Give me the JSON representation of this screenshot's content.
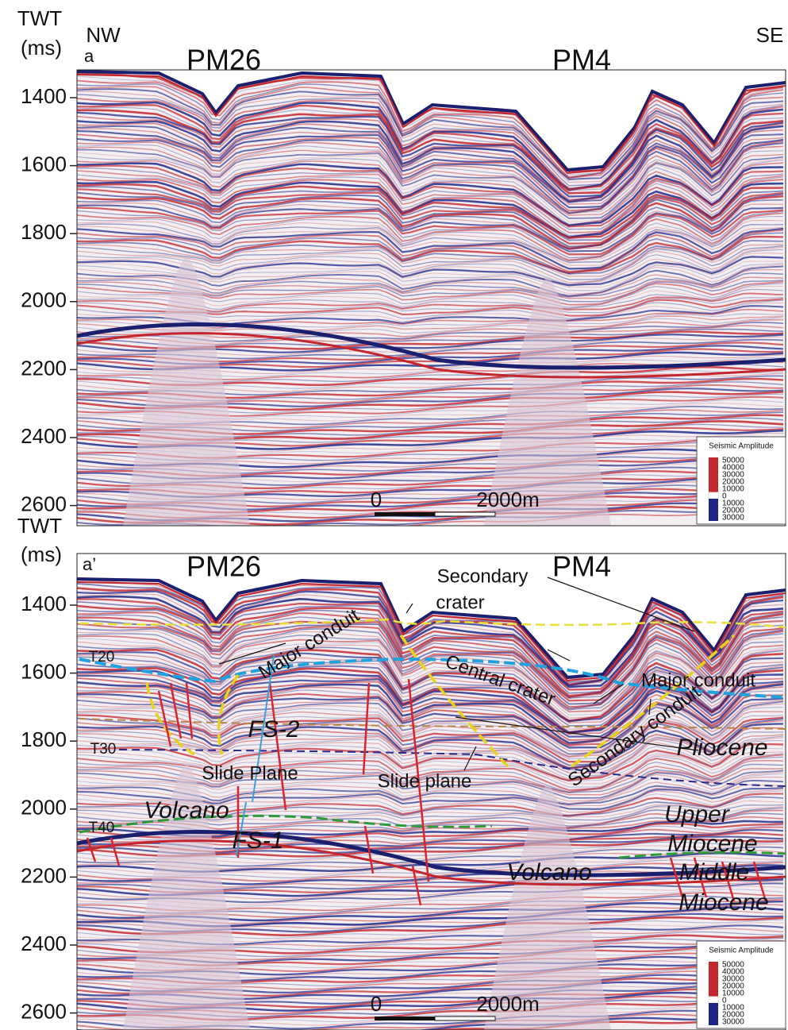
{
  "panels": [
    {
      "label": "a",
      "axis_title": [
        "TWT",
        "(ms)"
      ],
      "ticks": [
        1400,
        1600,
        1800,
        2000,
        2200,
        2400,
        2600
      ],
      "left": "NW",
      "right": "SE",
      "wells": [
        "PM26",
        "PM4"
      ],
      "legend": {
        "title": "Seismic Amplitude",
        "labels": [
          "50000",
          "40000",
          "30000",
          "20000",
          "10000",
          "0",
          "10000",
          "20000",
          "30000"
        ]
      },
      "scale_bar": [
        "0",
        "2000m"
      ]
    },
    {
      "label": "a’",
      "axis_title": [
        "TWT",
        "(ms)"
      ],
      "ticks": [
        1400,
        1600,
        1800,
        2000,
        2200,
        2400,
        2600
      ],
      "wells": [
        "PM26",
        "PM4"
      ],
      "legend": {
        "title": "Seismic Amplitude",
        "labels": [
          "50000",
          "40000",
          "30000",
          "20000",
          "10000",
          "0",
          "10000",
          "20000",
          "30000"
        ]
      },
      "scale_bar": [
        "0",
        "2000m"
      ],
      "annotations": [
        "Secondary",
        "crater",
        "Major conduit",
        "T20",
        "Central crater",
        "Major conduit",
        "Secondary conduit",
        "FS-2",
        "T30",
        "Pliocene",
        "Slide Plane",
        "Slide plane",
        "Volcano",
        "T40",
        "FS-1",
        "Upper",
        "Miocene",
        "Volcano",
        "Middle",
        "Miocene"
      ]
    }
  ]
}
